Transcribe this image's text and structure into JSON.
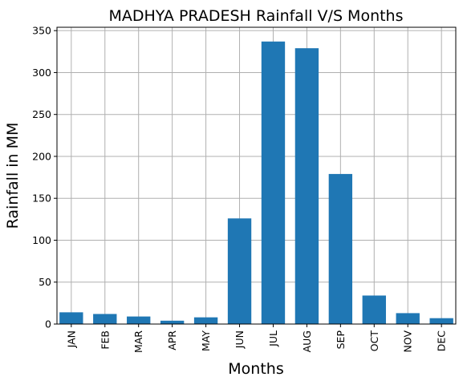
{
  "chart_data": {
    "type": "bar",
    "title": "MADHYA PRADESH Rainfall V/S Months",
    "xlabel": "Months",
    "ylabel": "Rainfall in MM",
    "categories": [
      "JAN",
      "FEB",
      "MAR",
      "APR",
      "MAY",
      "JUN",
      "JUL",
      "AUG",
      "SEP",
      "OCT",
      "NOV",
      "DEC"
    ],
    "values": [
      14,
      12,
      9,
      4,
      8,
      126,
      337,
      329,
      179,
      34,
      13,
      7
    ],
    "ylim": [
      0,
      354
    ],
    "yticks": [
      0,
      50,
      100,
      150,
      200,
      250,
      300,
      350
    ],
    "grid": true,
    "bar_color": "#1f77b4",
    "grid_color": "#b0b0b0"
  }
}
